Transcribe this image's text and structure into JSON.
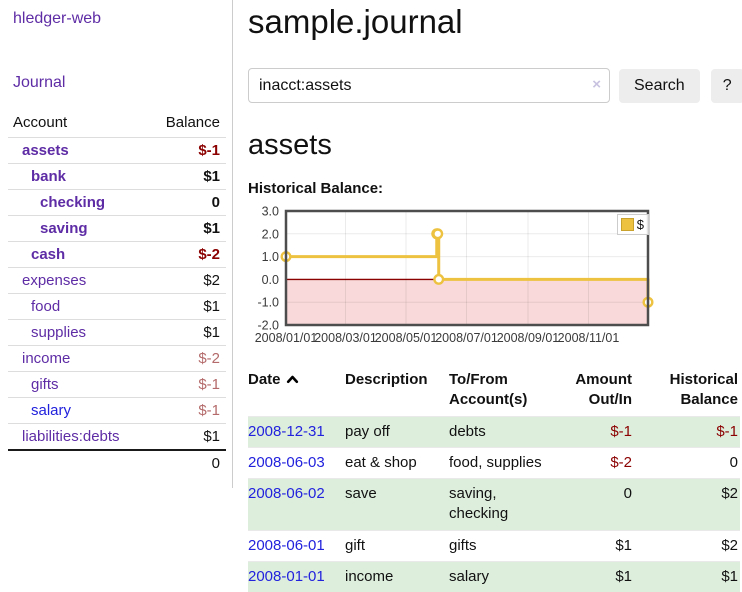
{
  "brand": "hledger-web",
  "sidebar": {
    "journal_link": "Journal",
    "accounts_table": {
      "headers": {
        "account": "Account",
        "balance": "Balance"
      },
      "rows": [
        {
          "name": "assets",
          "balance": "$-1",
          "level": 1,
          "bold": true,
          "name_color": "purple",
          "balance_style": "neg-strong"
        },
        {
          "name": "bank",
          "balance": "$1",
          "level": 2,
          "bold": true,
          "name_color": "purple",
          "balance_style": "pos"
        },
        {
          "name": "checking",
          "balance": "0",
          "level": 3,
          "bold": true,
          "name_color": "purple",
          "balance_style": "pos"
        },
        {
          "name": "saving",
          "balance": "$1",
          "level": 3,
          "bold": true,
          "name_color": "purple",
          "balance_style": "pos"
        },
        {
          "name": "cash",
          "balance": "$-2",
          "level": 2,
          "bold": true,
          "name_color": "purple",
          "balance_style": "neg-strong"
        },
        {
          "name": "expenses",
          "balance": "$2",
          "level": 1,
          "bold": false,
          "name_color": "purple",
          "balance_style": "pos"
        },
        {
          "name": "food",
          "balance": "$1",
          "level": 2,
          "bold": false,
          "name_color": "purple",
          "balance_style": "pos"
        },
        {
          "name": "supplies",
          "balance": "$1",
          "level": 2,
          "bold": false,
          "name_color": "purple",
          "balance_style": "pos"
        },
        {
          "name": "income",
          "balance": "$-2",
          "level": 1,
          "bold": false,
          "name_color": "purple",
          "balance_style": "neg-soft"
        },
        {
          "name": "gifts",
          "balance": "$-1",
          "level": 2,
          "bold": false,
          "name_color": "purple",
          "balance_style": "neg-soft"
        },
        {
          "name": "salary",
          "balance": "$-1",
          "level": 2,
          "bold": false,
          "name_color": "blue",
          "balance_style": "neg-soft"
        },
        {
          "name": "liabilities:debts",
          "balance": "$1",
          "level": 1,
          "bold": false,
          "name_color": "purple",
          "balance_style": "pos"
        }
      ],
      "total": "0"
    }
  },
  "main": {
    "title": "sample.journal",
    "search": {
      "value": "inacct:assets",
      "clear_label": "×",
      "button_label": "Search",
      "help_label": "?"
    },
    "account_heading": "assets",
    "chart_title": "Historical Balance:"
  },
  "chart_data": {
    "type": "line",
    "step": true,
    "title": "Historical Balance",
    "xlabel": "",
    "ylabel": "",
    "xlim": [
      "2008-01-01",
      "2008-12-31"
    ],
    "ylim": [
      -2,
      3
    ],
    "yticks": [
      "3.0",
      "2.0",
      "1.0",
      "0.0",
      "-1.0",
      "-2.0"
    ],
    "xticks": [
      {
        "label": "2008/01/01",
        "date": "2008-01-01"
      },
      {
        "label": "2008/03/01",
        "date": "2008-03-01"
      },
      {
        "label": "2008/05/01",
        "date": "2008-05-01"
      },
      {
        "label": "2008/07/01",
        "date": "2008-07-01"
      },
      {
        "label": "2008/09/01",
        "date": "2008-09-01"
      },
      {
        "label": "2008/11/01",
        "date": "2008-11-01"
      }
    ],
    "series": [
      {
        "name": "$",
        "color": "#edc240",
        "points": [
          [
            "2008-01-01",
            1
          ],
          [
            "2008-06-01",
            2
          ],
          [
            "2008-06-02",
            2
          ],
          [
            "2008-06-03",
            0
          ],
          [
            "2008-12-31",
            -1
          ]
        ]
      }
    ],
    "legend": {
      "position": "top-right",
      "label": "$",
      "swatch_color": "#edc240"
    },
    "grid": true,
    "negative_region_color": "#f9d9d9",
    "zero_line_color": "#8b0000",
    "border_color": "#4d4d4d",
    "gridline_color": "rgba(0,0,0,0.08)"
  },
  "register": {
    "headers": {
      "date": "Date",
      "description": "Description",
      "accounts": "To/From Account(s)",
      "amount": "Amount Out/In",
      "balance": "Historical Balance"
    },
    "rows": [
      {
        "date": "2008-12-31",
        "description": "pay off",
        "accounts": "debts",
        "amount": "$-1",
        "amount_style": "neg",
        "balance": "$-1",
        "balance_style": "neg"
      },
      {
        "date": "2008-06-03",
        "description": "eat & shop",
        "accounts": "food, supplies",
        "amount": "$-2",
        "amount_style": "neg",
        "balance": "0",
        "balance_style": "pos"
      },
      {
        "date": "2008-06-02",
        "description": "save",
        "accounts": "saving, checking",
        "amount": "0",
        "amount_style": "pos",
        "balance": "$2",
        "balance_style": "pos"
      },
      {
        "date": "2008-06-01",
        "description": "gift",
        "accounts": "gifts",
        "amount": "$1",
        "amount_style": "pos",
        "balance": "$2",
        "balance_style": "pos"
      },
      {
        "date": "2008-01-01",
        "description": "income",
        "accounts": "salary",
        "amount": "$1",
        "amount_style": "pos",
        "balance": "$1",
        "balance_style": "pos"
      }
    ]
  }
}
